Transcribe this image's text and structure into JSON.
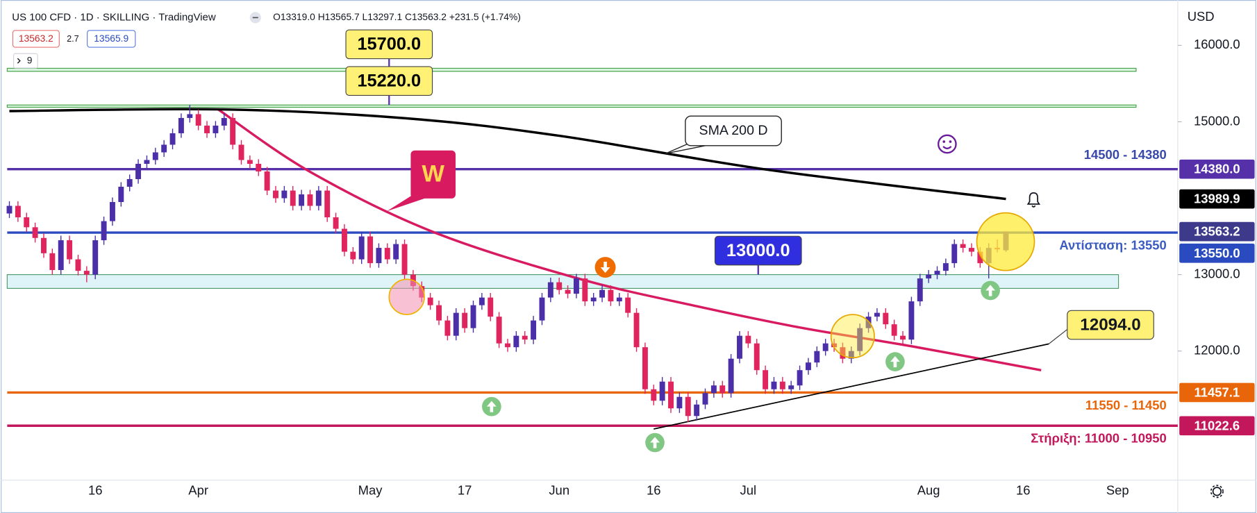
{
  "chart_data": {
    "type": "candlestick",
    "title": "US 100 CFD · 1D · SKILLING · TradingView",
    "ohlc_text": "O13319.0 H13565.7 L13297.1 C13563.2 +231.5 (+1.74%)",
    "header_boxes": [
      "13563.2",
      "2.7",
      "13565.9"
    ],
    "indicator_label": "9",
    "currency": "USD",
    "xlim": [
      -1,
      136
    ],
    "xticks": [
      {
        "value": 10,
        "label": "16"
      },
      {
        "value": 22,
        "label": "Apr"
      },
      {
        "value": 42,
        "label": "May"
      },
      {
        "value": 53,
        "label": "17"
      },
      {
        "value": 64,
        "label": "Jun"
      },
      {
        "value": 75,
        "label": "16"
      },
      {
        "value": 86,
        "label": "Jul"
      },
      {
        "value": 107,
        "label": "Aug"
      },
      {
        "value": 118,
        "label": "16"
      },
      {
        "value": 129,
        "label": "Sep"
      }
    ],
    "ylim": [
      10310,
      16510
    ],
    "yticks": [
      {
        "value": 12000,
        "label": "12000.0"
      },
      {
        "value": 13000,
        "label": "13000.0"
      },
      {
        "value": 15000,
        "label": "15000.0"
      },
      {
        "value": 16000,
        "label": "16000.0"
      }
    ],
    "up_color": "#4b2fa8",
    "down_color": "#e0245e",
    "last_price_color": "#3d3a8c",
    "ohlc": [
      [
        13800,
        13960,
        13740,
        13900
      ],
      [
        13900,
        13960,
        13690,
        13750
      ],
      [
        13750,
        13810,
        13560,
        13620
      ],
      [
        13620,
        13680,
        13420,
        13480
      ],
      [
        13480,
        13540,
        13220,
        13280
      ],
      [
        13280,
        13340,
        13000,
        13060
      ],
      [
        13060,
        13510,
        13000,
        13450
      ],
      [
        13450,
        13510,
        13140,
        13200
      ],
      [
        13200,
        13260,
        12990,
        13050
      ],
      [
        13050,
        13110,
        12900,
        13000
      ],
      [
        13000,
        13510,
        12940,
        13450
      ],
      [
        13450,
        13760,
        13390,
        13700
      ],
      [
        13700,
        14010,
        13640,
        13950
      ],
      [
        13950,
        14210,
        13890,
        14150
      ],
      [
        14150,
        14310,
        14090,
        14250
      ],
      [
        14250,
        14510,
        14190,
        14450
      ],
      [
        14450,
        14560,
        14390,
        14500
      ],
      [
        14500,
        14660,
        14440,
        14600
      ],
      [
        14600,
        14760,
        14540,
        14700
      ],
      [
        14700,
        14910,
        14640,
        14850
      ],
      [
        14850,
        15110,
        14790,
        15050
      ],
      [
        15050,
        15220,
        14990,
        15100
      ],
      [
        15100,
        15160,
        14890,
        14950
      ],
      [
        14950,
        15010,
        14790,
        14850
      ],
      [
        14850,
        15010,
        14790,
        14950
      ],
      [
        14950,
        15110,
        14890,
        15050
      ],
      [
        15050,
        15110,
        14640,
        14700
      ],
      [
        14700,
        14760,
        14440,
        14500
      ],
      [
        14500,
        14560,
        14390,
        14450
      ],
      [
        14450,
        14510,
        14290,
        14350
      ],
      [
        14350,
        14410,
        14040,
        14100
      ],
      [
        14100,
        14160,
        13940,
        14000
      ],
      [
        14000,
        14160,
        13940,
        14100
      ],
      [
        14100,
        14160,
        13840,
        13900
      ],
      [
        13900,
        14110,
        13840,
        14050
      ],
      [
        14050,
        14110,
        13840,
        13900
      ],
      [
        13900,
        14160,
        13840,
        14100
      ],
      [
        14100,
        14160,
        13690,
        13750
      ],
      [
        13750,
        13810,
        13540,
        13600
      ],
      [
        13600,
        13660,
        13240,
        13300
      ],
      [
        13300,
        13360,
        13140,
        13200
      ],
      [
        13200,
        13560,
        13140,
        13500
      ],
      [
        13500,
        13560,
        13090,
        13150
      ],
      [
        13150,
        13410,
        13090,
        13350
      ],
      [
        13350,
        13410,
        13140,
        13200
      ],
      [
        13200,
        13460,
        13140,
        13400
      ],
      [
        13400,
        13460,
        12940,
        13000
      ],
      [
        13000,
        13060,
        12790,
        12850
      ],
      [
        12850,
        12910,
        12640,
        12700
      ],
      [
        12700,
        12760,
        12540,
        12600
      ],
      [
        12600,
        12660,
        12340,
        12400
      ],
      [
        12400,
        12460,
        12140,
        12200
      ],
      [
        12200,
        12560,
        12140,
        12500
      ],
      [
        12500,
        12560,
        12240,
        12300
      ],
      [
        12300,
        12660,
        12240,
        12600
      ],
      [
        12600,
        12760,
        12540,
        12700
      ],
      [
        12700,
        12760,
        12390,
        12450
      ],
      [
        12450,
        12510,
        12040,
        12100
      ],
      [
        12100,
        12160,
        11990,
        12050
      ],
      [
        12050,
        12260,
        11990,
        12200
      ],
      [
        12200,
        12260,
        12090,
        12150
      ],
      [
        12150,
        12460,
        12090,
        12400
      ],
      [
        12400,
        12760,
        12340,
        12700
      ],
      [
        12700,
        12960,
        12640,
        12900
      ],
      [
        12900,
        12960,
        12740,
        12800
      ],
      [
        12800,
        12860,
        12690,
        12750
      ],
      [
        12750,
        13010,
        12690,
        12950
      ],
      [
        12950,
        13010,
        12590,
        12650
      ],
      [
        12650,
        12760,
        12590,
        12700
      ],
      [
        12700,
        12860,
        12640,
        12800
      ],
      [
        12800,
        12860,
        12590,
        12650
      ],
      [
        12650,
        12760,
        12590,
        12700
      ],
      [
        12700,
        12760,
        12440,
        12500
      ],
      [
        12500,
        12560,
        11990,
        12050
      ],
      [
        12050,
        12110,
        11440,
        11500
      ],
      [
        11500,
        11560,
        11290,
        11350
      ],
      [
        11350,
        11660,
        11290,
        11600
      ],
      [
        11600,
        11660,
        11190,
        11250
      ],
      [
        11250,
        11460,
        11190,
        11400
      ],
      [
        11400,
        11460,
        11068,
        11150
      ],
      [
        11150,
        11360,
        11090,
        11300
      ],
      [
        11300,
        11510,
        11240,
        11450
      ],
      [
        11450,
        11610,
        11390,
        11550
      ],
      [
        11550,
        11610,
        11390,
        11450
      ],
      [
        11450,
        11960,
        11390,
        11900
      ],
      [
        11900,
        12260,
        11840,
        12200
      ],
      [
        12200,
        12260,
        12040,
        12100
      ],
      [
        12100,
        12160,
        11690,
        11750
      ],
      [
        11750,
        11810,
        11440,
        11500
      ],
      [
        11500,
        11660,
        11440,
        11600
      ],
      [
        11600,
        11660,
        11440,
        11500
      ],
      [
        11500,
        11610,
        11440,
        11550
      ],
      [
        11550,
        11810,
        11490,
        11750
      ],
      [
        11750,
        11910,
        11690,
        11850
      ],
      [
        11850,
        12060,
        11790,
        12000
      ],
      [
        12000,
        12160,
        11940,
        12100
      ],
      [
        12100,
        12160,
        11990,
        12050
      ],
      [
        12050,
        12110,
        11840,
        11900
      ],
      [
        11900,
        12060,
        11840,
        12000
      ],
      [
        12000,
        12360,
        11940,
        12300
      ],
      [
        12300,
        12510,
        12240,
        12450
      ],
      [
        12450,
        12560,
        12390,
        12500
      ],
      [
        12500,
        12560,
        12290,
        12350
      ],
      [
        12350,
        12410,
        12140,
        12200
      ],
      [
        12200,
        12260,
        12090,
        12150
      ],
      [
        12150,
        12710,
        12090,
        12650
      ],
      [
        12650,
        13010,
        12590,
        12950
      ],
      [
        12950,
        13060,
        12890,
        13000
      ],
      [
        13000,
        13110,
        12940,
        13050
      ],
      [
        13050,
        13210,
        12990,
        13150
      ],
      [
        13150,
        13460,
        13090,
        13400
      ],
      [
        13400,
        13460,
        13290,
        13350
      ],
      [
        13350,
        13410,
        13240,
        13300
      ],
      [
        13300,
        13360,
        13090,
        13150
      ],
      [
        13150,
        13410,
        12950,
        13350
      ],
      [
        13350,
        13460,
        13290,
        13331.7
      ],
      [
        13319.0,
        13565.7,
        13297.1,
        13563.2
      ]
    ],
    "sma": {
      "name": "SMA 200 D",
      "color": "#000000",
      "x": [
        0,
        25,
        46,
        64,
        88,
        116
      ],
      "values": [
        15140,
        15162,
        15047,
        14817,
        14377,
        13989.9
      ]
    },
    "curve": {
      "label": "W",
      "color": "#d81b60",
      "x": [
        24.3,
        35,
        49.3,
        66.1,
        80,
        92.2,
        105,
        120.1
      ],
      "values": [
        15162,
        14346,
        13560,
        12953,
        12587,
        12304,
        12063,
        11749
      ]
    },
    "trendline": {
      "label": "12094.0",
      "color": "#000000",
      "x": [
        75,
        121
      ],
      "values": [
        10980,
        12094
      ]
    },
    "zones": [
      {
        "low": 15660,
        "high": 15700,
        "label": "15700.0",
        "fill": "#d9f5df",
        "stroke": "#43a047",
        "label_bg": "#fff176",
        "label_color": "#000000"
      },
      {
        "low": 15190,
        "high": 15220,
        "label": "15220.0",
        "fill": "#d9f5df",
        "stroke": "#43a047",
        "label_bg": "#fff176",
        "label_color": "#000000"
      },
      {
        "low": 12820,
        "high": 13000,
        "label": "13000.0",
        "fill": "#dff4f8",
        "stroke": "#4c9a6a",
        "label_bg": "#2f2fe0",
        "label_color": "#ffffff"
      }
    ],
    "hlines": [
      {
        "value": 14380,
        "label": "14380.0",
        "color": "#5530a8",
        "text": "14500 - 14380",
        "text_color": "#3949ab"
      },
      {
        "value": 13550,
        "label": "13550.0",
        "color": "#2a4bc0",
        "text": "Αντίσταση: 13550",
        "text_color": "#3a5bbf"
      },
      {
        "value": 11457.1,
        "label": "11457.1",
        "color": "#e8650a",
        "text": "11550 - 11450",
        "text_color": "#e8650a"
      },
      {
        "value": 11022.6,
        "label": "11022.6",
        "color": "#c2185b",
        "text": "Στήριξη: 11000 - 10950",
        "text_color": "#c2185b"
      }
    ]
  }
}
